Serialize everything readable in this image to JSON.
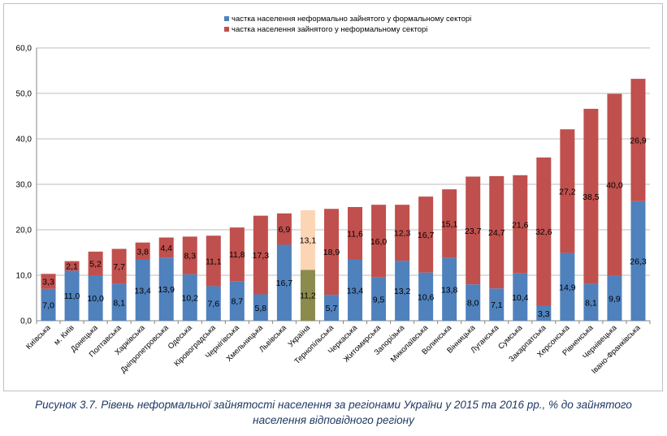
{
  "chart_data": {
    "type": "bar",
    "stacked": true,
    "categories": [
      "Київська",
      "м. Київ",
      "Донецька",
      "Полтавська",
      "Харківська",
      "Дніпропетровська",
      "Одеська",
      "Кіровоградська",
      "Чернігівська",
      "Хмельницька",
      "Львівська",
      "Україна",
      "Тернопільська",
      "Черкаська",
      "Житомирська",
      "Запорізька",
      "Миколаївська",
      "Волинська",
      "Вінницька",
      "Луганська",
      "Сумська",
      "Закарпатська",
      "Херсонська",
      "Рівненська",
      "Чернівецька",
      "Івано-Франківська"
    ],
    "series": [
      {
        "name": "частка населення неформально зайнятого у формальному секторі",
        "color": "#4f81bd",
        "values": [
          7.0,
          11.0,
          10.0,
          8.1,
          13.4,
          13.9,
          10.2,
          7.6,
          8.7,
          5.8,
          16.7,
          11.2,
          5.7,
          13.4,
          9.5,
          13.2,
          10.6,
          13.8,
          8.0,
          7.1,
          10.4,
          3.3,
          14.9,
          8.1,
          9.9,
          26.3
        ],
        "labels": [
          "7,0",
          "11,0",
          "10,0",
          "8,1",
          "13,4",
          "13,9",
          "10,2",
          "7,6",
          "8,7",
          "5,8",
          "16,7",
          "11,2",
          "5,7",
          "13,4",
          "9,5",
          "13,2",
          "10,6",
          "13,8",
          "8,0",
          "7,1",
          "10,4",
          "3,3",
          "14,9",
          "8,1",
          "9,9",
          "26,3"
        ]
      },
      {
        "name": "частка населення зайнятого у неформальному секторі",
        "color": "#c0504d",
        "values": [
          3.3,
          2.1,
          5.2,
          7.7,
          3.8,
          4.4,
          8.3,
          11.1,
          11.8,
          17.3,
          6.9,
          13.1,
          18.9,
          11.6,
          16.0,
          12.3,
          16.7,
          15.1,
          23.7,
          24.7,
          21.6,
          32.6,
          27.2,
          38.5,
          40.0,
          26.9
        ],
        "labels": [
          "3,3",
          "2,1",
          "5,2",
          "7,7",
          "3,8",
          "4,4",
          "8,3",
          "11,1",
          "11,8",
          "17,3",
          "6,9",
          "13,1",
          "18,9",
          "11,6",
          "16,0",
          "12,3",
          "16,7",
          "15,1",
          "23,7",
          "24,7",
          "21,6",
          "32,6",
          "27,2",
          "38,5",
          "40,0",
          "26,9"
        ]
      }
    ],
    "highlight": {
      "category": "Україна",
      "colors": [
        "#8b8b4d",
        "#fcd5b5"
      ]
    },
    "yticks": [
      "0,0",
      "10,0",
      "20,0",
      "30,0",
      "40,0",
      "50,0",
      "60,0"
    ],
    "ylim": [
      0,
      60
    ],
    "grid": true,
    "legend_position": "top-center"
  },
  "caption": {
    "line1": "Рисунок 3.7. Рівень неформальної зайнятості населення за регіонами України у 2015  та 2016 рр., % до зайнятого",
    "line2": "населення відповідного регіону"
  }
}
